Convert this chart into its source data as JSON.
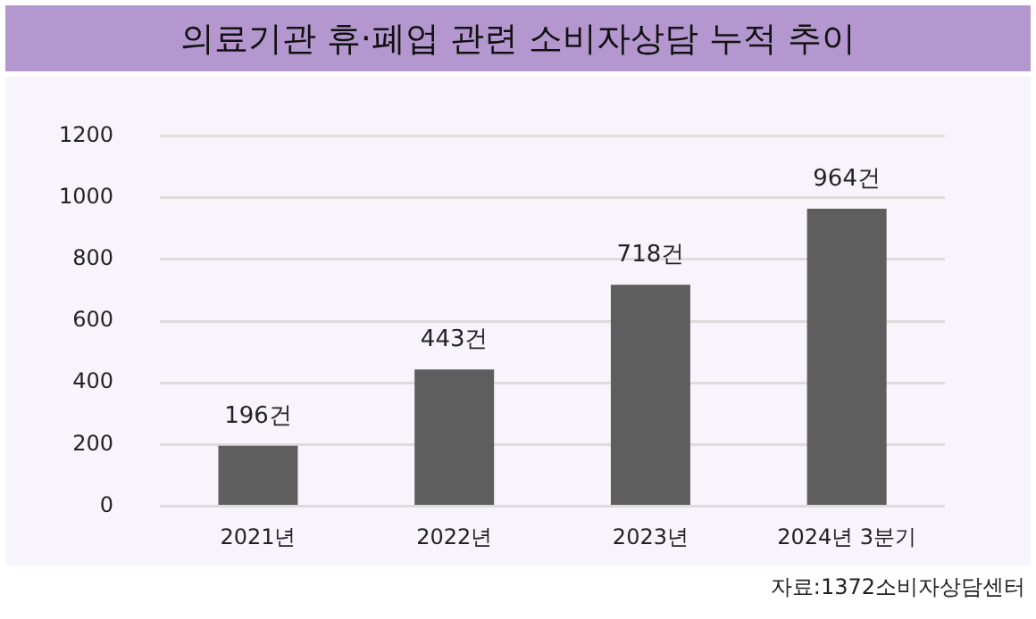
{
  "chart_data": {
    "type": "bar",
    "title": "의료기관 휴·폐업 관련 소비자상담 누적 추이",
    "categories": [
      "2021년",
      "2022년",
      "2023년",
      "2024년 3분기"
    ],
    "values": [
      196,
      443,
      718,
      964
    ],
    "color": "#5e5e5e",
    "value_labels": [
      "196건",
      "443건",
      "718건",
      "964건"
    ],
    "ylim": [
      0,
      1200
    ],
    "yticks": [
      0,
      200,
      400,
      600,
      800,
      1000,
      1200
    ],
    "grid": "y",
    "annotations": [
      "자료:1372소비자상담센터"
    ]
  }
}
